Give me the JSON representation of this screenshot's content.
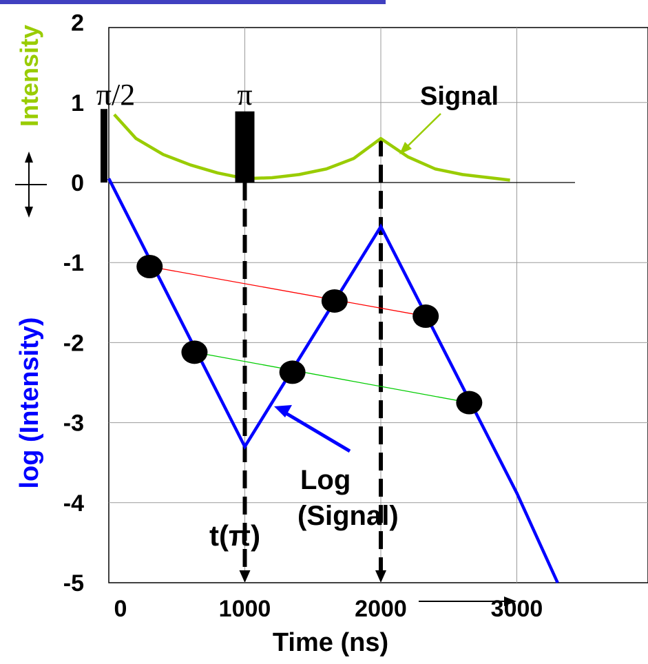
{
  "chart_data": {
    "type": "line",
    "xlabel": "Time (ns)",
    "ylabel_top": "Intensity",
    "ylabel_bottom": "log (Intensity)",
    "xlim": [
      0,
      3900
    ],
    "ylim": [
      -5,
      2
    ],
    "x_ticks": [
      0,
      1000,
      2000,
      3000
    ],
    "y_ticks": [
      2,
      1,
      0,
      -1,
      -2,
      -3,
      -4,
      -5
    ],
    "grid": true,
    "colors": {
      "signal": "#99cc00",
      "log_signal": "#0000ff",
      "connector_upper": "#ff0000",
      "connector_lower": "#00cc00",
      "pulse": "#000000",
      "axis_text": "#000000",
      "top_label": "#99cc00",
      "bottom_label": "#0000ff"
    },
    "pulses": [
      {
        "label": "π/2",
        "x": 0,
        "height": 0.85
      },
      {
        "label": "π",
        "x": 1000,
        "height": 0.82
      }
    ],
    "series": [
      {
        "name": "Signal",
        "x": [
          40,
          200,
          400,
          600,
          800,
          1000,
          1200,
          1400,
          1600,
          1800,
          2000,
          2200,
          2400,
          2600,
          2800,
          2950
        ],
        "y": [
          0.85,
          0.55,
          0.35,
          0.22,
          0.12,
          0.05,
          0.06,
          0.1,
          0.17,
          0.3,
          0.55,
          0.32,
          0.17,
          0.1,
          0.06,
          0.03
        ]
      },
      {
        "name": "Log (Signal)",
        "x": [
          0,
          1000,
          2000,
          3000,
          3300
        ],
        "y": [
          0.05,
          -3.3,
          -0.55,
          -3.88,
          -5
        ]
      }
    ],
    "markers": [
      {
        "x": 300,
        "y": -1.05
      },
      {
        "x": 1660,
        "y": -1.48
      },
      {
        "x": 2330,
        "y": -1.67
      },
      {
        "x": 630,
        "y": -2.12
      },
      {
        "x": 1350,
        "y": -2.37
      },
      {
        "x": 2650,
        "y": -2.75
      }
    ],
    "connectors": [
      {
        "from": [
          300,
          -1.05
        ],
        "to": [
          2330,
          -1.67
        ],
        "color_key": "connector_upper"
      },
      {
        "from": [
          630,
          -2.12
        ],
        "to": [
          2650,
          -2.75
        ],
        "color_key": "connector_lower"
      }
    ],
    "dashed_drops": [
      {
        "x": 1000,
        "from_y": 0,
        "to_y": -5
      },
      {
        "x": 2000,
        "from_y": 0.55,
        "to_y": -5
      }
    ],
    "annotations": {
      "signal_label": "Signal",
      "log_signal_line1": "Log",
      "log_signal_line2": "(Signal)",
      "t_pi": "t(π)"
    }
  }
}
